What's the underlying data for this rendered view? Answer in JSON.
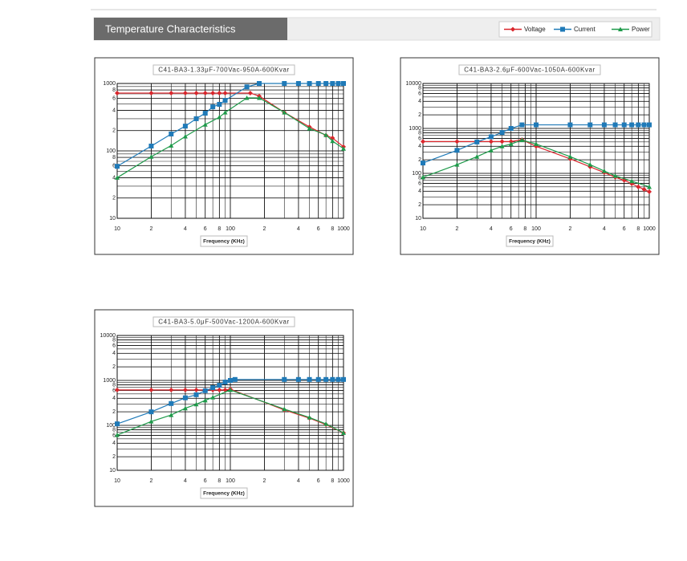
{
  "header": {
    "title": "Temperature Characteristics"
  },
  "chart_data": [
    {
      "type": "line",
      "title": "C41-BA3-1.33μF-700Vac-950A-600Kvar",
      "xlabel": "Frequency (KHz)",
      "log_x": true,
      "log_y": true,
      "grid": true,
      "xlim": [
        10,
        1000
      ],
      "ylim": [
        10,
        1000
      ],
      "xticks": [
        10,
        {
          "value": 20,
          "label": "2"
        },
        {
          "value": 40,
          "label": "4"
        },
        {
          "value": 60,
          "label": "6"
        },
        {
          "value": 80,
          "label": "8"
        },
        100,
        {
          "value": 200,
          "label": "2"
        },
        {
          "value": 400,
          "label": "4"
        },
        {
          "value": 600,
          "label": "6"
        },
        {
          "value": 800,
          "label": "8"
        },
        1000
      ],
      "yticks": [
        10,
        {
          "value": 20,
          "label": "2"
        },
        {
          "value": 40,
          "label": "4"
        },
        {
          "value": 60,
          "label": "6"
        },
        {
          "value": 80,
          "label": "8"
        },
        100,
        {
          "value": 200,
          "label": "2"
        },
        {
          "value": 400,
          "label": "4"
        },
        {
          "value": 600,
          "label": "6"
        },
        {
          "value": 800,
          "label": "8"
        },
        1000
      ],
      "series": [
        {
          "name": "Voltage",
          "color": "#d9262c",
          "marker": "diamond",
          "x": [
            10,
            20,
            30,
            40,
            50,
            60,
            70,
            80,
            90,
            150,
            180,
            300,
            500,
            700,
            800,
            1000
          ],
          "values": [
            720,
            720,
            720,
            720,
            720,
            720,
            720,
            720,
            720,
            720,
            650,
            372,
            227,
            170,
            155,
            115
          ]
        },
        {
          "name": "Current",
          "color": "#1f7ab8",
          "marker": "square",
          "x": [
            10,
            20,
            30,
            40,
            50,
            60,
            70,
            80,
            90,
            140,
            180,
            300,
            400,
            500,
            600,
            700,
            800,
            900,
            1000
          ],
          "values": [
            59,
            118,
            178,
            233,
            300,
            362,
            450,
            490,
            560,
            890,
            1000,
            1000,
            1000,
            1000,
            1000,
            1000,
            1000,
            1000,
            1000
          ]
        },
        {
          "name": "Power",
          "color": "#1e9a4a",
          "marker": "triangle",
          "x": [
            10,
            20,
            30,
            40,
            60,
            80,
            90,
            140,
            180,
            300,
            500,
            700,
            800,
            1000
          ],
          "values": [
            40,
            82,
            120,
            164,
            245,
            316,
            372,
            610,
            610,
            372,
            215,
            172,
            140,
            108
          ]
        }
      ]
    },
    {
      "type": "line",
      "title": "C41-BA3-2.6μF-600Vac-1050A-600Kvar",
      "xlabel": "Frequency (KHz)",
      "log_x": true,
      "log_y": true,
      "grid": true,
      "xlim": [
        10,
        1000
      ],
      "ylim": [
        10,
        10000
      ],
      "xticks": [
        10,
        {
          "value": 20,
          "label": "2"
        },
        {
          "value": 40,
          "label": "4"
        },
        {
          "value": 60,
          "label": "6"
        },
        {
          "value": 80,
          "label": "8"
        },
        100,
        {
          "value": 200,
          "label": "2"
        },
        {
          "value": 400,
          "label": "4"
        },
        {
          "value": 600,
          "label": "6"
        },
        {
          "value": 800,
          "label": "8"
        },
        1000
      ],
      "yticks": [
        10,
        {
          "value": 20,
          "label": "2"
        },
        {
          "value": 40,
          "label": "4"
        },
        {
          "value": 60,
          "label": "6"
        },
        {
          "value": 80,
          "label": "8"
        },
        100,
        {
          "value": 200,
          "label": "2"
        },
        {
          "value": 400,
          "label": "4"
        },
        {
          "value": 600,
          "label": "6"
        },
        {
          "value": 800,
          "label": "8"
        },
        1000,
        {
          "value": 2000,
          "label": "2"
        },
        {
          "value": 4000,
          "label": "4"
        },
        {
          "value": 6000,
          "label": "6"
        },
        {
          "value": 8000,
          "label": "8"
        },
        10000
      ],
      "series": [
        {
          "name": "Voltage",
          "color": "#d9262c",
          "marker": "diamond",
          "x": [
            10,
            20,
            30,
            40,
            50,
            60,
            75,
            100,
            200,
            300,
            400,
            500,
            600,
            700,
            800,
            900,
            1000
          ],
          "values": [
            510,
            510,
            510,
            510,
            510,
            510,
            560,
            400,
            210,
            140,
            104,
            82,
            70,
            59,
            50,
            44,
            39
          ]
        },
        {
          "name": "Current",
          "color": "#1f7ab8",
          "marker": "square",
          "x": [
            10,
            20,
            30,
            40,
            50,
            60,
            75,
            100,
            200,
            300,
            400,
            500,
            600,
            700,
            800,
            900,
            1000
          ],
          "values": [
            170,
            325,
            500,
            650,
            810,
            1000,
            1200,
            1200,
            1200,
            1200,
            1200,
            1200,
            1200,
            1200,
            1200,
            1200,
            1200
          ]
        },
        {
          "name": "Power",
          "color": "#1e9a4a",
          "marker": "triangle",
          "x": [
            10,
            20,
            30,
            40,
            50,
            60,
            75,
            100,
            200,
            300,
            400,
            500,
            700,
            1000
          ],
          "values": [
            82,
            156,
            235,
            325,
            400,
            450,
            550,
            450,
            235,
            156,
            113,
            88,
            67,
            50
          ]
        }
      ]
    },
    {
      "type": "line",
      "title": "C41-BA3-5.0μF-500Vac-1200A-600Kvar",
      "xlabel": "Frequency (KHz)",
      "log_x": true,
      "log_y": true,
      "grid": true,
      "xlim": [
        10,
        1000
      ],
      "ylim": [
        10,
        10000
      ],
      "xticks": [
        10,
        {
          "value": 20,
          "label": "2"
        },
        {
          "value": 40,
          "label": "4"
        },
        {
          "value": 60,
          "label": "6"
        },
        {
          "value": 80,
          "label": "8"
        },
        100,
        {
          "value": 200,
          "label": "2"
        },
        {
          "value": 400,
          "label": "4"
        },
        {
          "value": 600,
          "label": "6"
        },
        {
          "value": 800,
          "label": "8"
        },
        1000
      ],
      "yticks": [
        10,
        {
          "value": 20,
          "label": "2"
        },
        {
          "value": 40,
          "label": "4"
        },
        {
          "value": 60,
          "label": "6"
        },
        {
          "value": 80,
          "label": "8"
        },
        100,
        {
          "value": 200,
          "label": "2"
        },
        {
          "value": 400,
          "label": "4"
        },
        {
          "value": 600,
          "label": "6"
        },
        {
          "value": 800,
          "label": "8"
        },
        1000,
        {
          "value": 2000,
          "label": "2"
        },
        {
          "value": 4000,
          "label": "4"
        },
        {
          "value": 6000,
          "label": "6"
        },
        {
          "value": 8000,
          "label": "8"
        },
        10000
      ],
      "series": [
        {
          "name": "Voltage",
          "color": "#d9262c",
          "marker": "diamond",
          "x": [
            10,
            20,
            30,
            40,
            50,
            60,
            70,
            80,
            90,
            100,
            300,
            500,
            700,
            1000
          ],
          "values": [
            613,
            613,
            613,
            613,
            613,
            613,
            613,
            613,
            613,
            640,
            220,
            145,
            104,
            68
          ]
        },
        {
          "name": "Current",
          "color": "#1f7ab8",
          "marker": "square",
          "x": [
            10,
            20,
            30,
            40,
            50,
            60,
            70,
            80,
            90,
            100,
            110,
            300,
            400,
            500,
            600,
            700,
            800,
            900,
            1000
          ],
          "values": [
            108,
            200,
            306,
            410,
            480,
            590,
            690,
            780,
            920,
            1000,
            1050,
            1050,
            1050,
            1050,
            1050,
            1050,
            1050,
            1050,
            1050
          ]
        },
        {
          "name": "Power",
          "color": "#1e9a4a",
          "marker": "triangle",
          "x": [
            10,
            20,
            30,
            40,
            50,
            60,
            70,
            100,
            300,
            500,
            700,
            1000
          ],
          "values": [
            61,
            122,
            170,
            240,
            295,
            360,
            420,
            613,
            230,
            150,
            108,
            68
          ]
        }
      ]
    }
  ]
}
